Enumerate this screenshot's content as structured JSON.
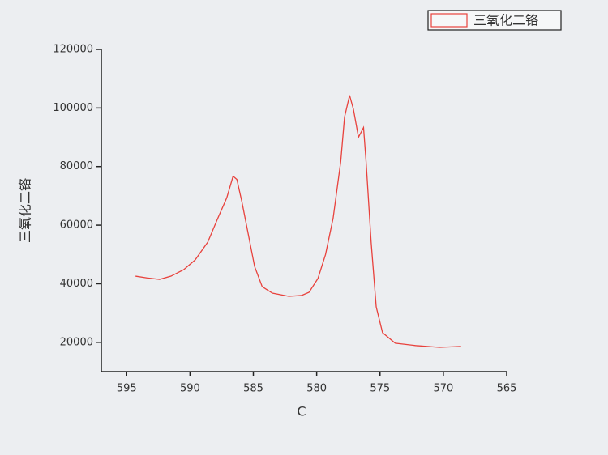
{
  "chart_data": {
    "type": "line",
    "x_label": "C",
    "y_label": "三氧化二铬",
    "series": [
      {
        "name": "三氧化二铬",
        "color": "#e8413c",
        "x": [
          594.3,
          593.4,
          592.4,
          591.5,
          590.5,
          589.6,
          588.6,
          587.8,
          587.1,
          586.6,
          586.3,
          585.9,
          585.4,
          584.9,
          584.3,
          583.5,
          582.2,
          581.2,
          580.6,
          579.9,
          579.3,
          578.7,
          578.1,
          577.8,
          577.4,
          577.1,
          576.7,
          576.3,
          576.1,
          575.7,
          575.3,
          574.8,
          573.8,
          572.2,
          570.3,
          568.6
        ],
        "values": [
          42600,
          42000,
          41500,
          42600,
          44800,
          48100,
          54200,
          62400,
          69300,
          76700,
          75600,
          67900,
          56900,
          45900,
          39000,
          36800,
          35700,
          36000,
          37100,
          41800,
          50000,
          62400,
          81700,
          96900,
          104300,
          99600,
          90000,
          93300,
          81700,
          54200,
          32100,
          23300,
          19700,
          18900,
          18300,
          18600
        ]
      }
    ],
    "xlim": [
      597,
      565
    ],
    "xticks": [
      595,
      590,
      585,
      580,
      575,
      570,
      565
    ],
    "ylim": [
      10000,
      120000
    ],
    "yticks": [
      20000,
      40000,
      60000,
      80000,
      100000,
      120000
    ],
    "legend": "top-right"
  }
}
